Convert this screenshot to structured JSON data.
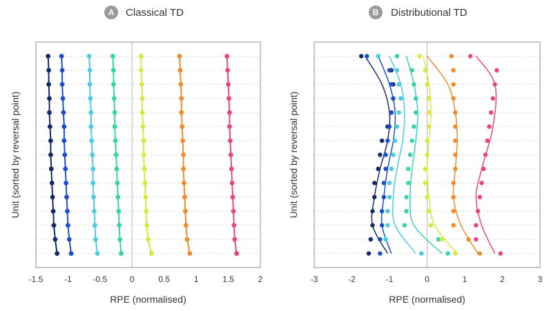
{
  "panels": [
    {
      "badge": "A",
      "title": "Classical TD"
    },
    {
      "badge": "B",
      "title": "Distributional TD"
    }
  ],
  "colors": [
    "#152a63",
    "#1a4fc9",
    "#4ccbe0",
    "#34d4a8",
    "#d8e83a",
    "#f08a2c",
    "#e8467a"
  ],
  "chart_data": [
    {
      "type": "scatter",
      "title": "Classical TD",
      "xlabel": "RPE (normalised)",
      "ylabel": "Unit (sorted by reversal point)",
      "xlim": [
        -1.5,
        2
      ],
      "xticks": [
        -1.5,
        -1,
        -0.5,
        0,
        0.5,
        1,
        1.5,
        2
      ],
      "xtick_labels": [
        "-1.5",
        "-1",
        "-0.5",
        "0",
        "0.5",
        "1",
        "1.5",
        "2"
      ],
      "ylim": [
        0,
        16
      ],
      "units": [
        1,
        2,
        3,
        4,
        5,
        6,
        7,
        8,
        9,
        10,
        11,
        12,
        13,
        14,
        15
      ],
      "grid": "dotted horizontal lines at each unit",
      "series": [
        {
          "values": [
            -1.31,
            -1.3,
            -1.3,
            -1.29,
            -1.29,
            -1.28,
            -1.27,
            -1.27,
            -1.26,
            -1.25,
            -1.24,
            -1.23,
            -1.22,
            -1.2,
            -1.17
          ]
        },
        {
          "values": [
            -1.1,
            -1.09,
            -1.09,
            -1.08,
            -1.07,
            -1.06,
            -1.06,
            -1.05,
            -1.04,
            -1.03,
            -1.02,
            -1.01,
            -1.0,
            -0.98,
            -0.95
          ]
        },
        {
          "values": [
            -0.67,
            -0.66,
            -0.66,
            -0.65,
            -0.64,
            -0.64,
            -0.63,
            -0.62,
            -0.61,
            -0.61,
            -0.6,
            -0.59,
            -0.58,
            -0.57,
            -0.54
          ]
        },
        {
          "values": [
            -0.3,
            -0.29,
            -0.29,
            -0.28,
            -0.27,
            -0.27,
            -0.26,
            -0.25,
            -0.24,
            -0.23,
            -0.22,
            -0.21,
            -0.2,
            -0.19,
            -0.17
          ]
        },
        {
          "values": [
            0.14,
            0.14,
            0.15,
            0.16,
            0.16,
            0.17,
            0.18,
            0.18,
            0.19,
            0.2,
            0.21,
            0.22,
            0.23,
            0.25,
            0.3
          ]
        },
        {
          "values": [
            0.74,
            0.75,
            0.76,
            0.77,
            0.77,
            0.78,
            0.79,
            0.8,
            0.8,
            0.81,
            0.82,
            0.83,
            0.84,
            0.86,
            0.9
          ]
        },
        {
          "values": [
            1.48,
            1.49,
            1.5,
            1.51,
            1.52,
            1.52,
            1.53,
            1.54,
            1.55,
            1.56,
            1.57,
            1.58,
            1.59,
            1.6,
            1.63
          ]
        }
      ]
    },
    {
      "type": "scatter",
      "title": "Distributional TD",
      "xlabel": "RPE (normalised)",
      "ylabel": "Unit (sorted by reversal point)",
      "xlim": [
        -3,
        3
      ],
      "xticks": [
        -3,
        -2,
        -1,
        0,
        1,
        2,
        3
      ],
      "xtick_labels": [
        "-3",
        "-2",
        "-1",
        "0",
        "1",
        "2",
        "3"
      ],
      "ylim": [
        0,
        16
      ],
      "units": [
        1,
        2,
        3,
        4,
        5,
        6,
        7,
        8,
        9,
        10,
        11,
        12,
        13,
        14,
        15
      ],
      "grid": "dotted horizontal lines at each unit",
      "series": [
        {
          "points": [
            [
              -1.75,
              1
            ],
            [
              -0.95,
              2
            ],
            [
              -0.9,
              3
            ],
            [
              -0.9,
              4
            ],
            [
              -0.95,
              5
            ],
            [
              -1.05,
              6
            ],
            [
              -1.2,
              7
            ],
            [
              -1.25,
              8
            ],
            [
              -1.3,
              9
            ],
            [
              -1.4,
              10
            ],
            [
              -1.4,
              11
            ],
            [
              -1.45,
              12
            ],
            [
              -1.45,
              13
            ],
            [
              -1.5,
              14
            ],
            [
              -1.55,
              15
            ]
          ],
          "curve": [
            [
              -1.65,
              1
            ],
            [
              -1.2,
              3
            ],
            [
              -1.0,
              5
            ],
            [
              -1.05,
              7
            ],
            [
              -1.25,
              9
            ],
            [
              -1.4,
              11
            ],
            [
              -1.45,
              13
            ],
            [
              -1.05,
              15
            ]
          ]
        },
        {
          "points": [
            [
              -1.6,
              1
            ],
            [
              -1.0,
              2
            ],
            [
              -0.95,
              3
            ],
            [
              -0.9,
              4
            ],
            [
              -0.95,
              5
            ],
            [
              -1.0,
              6
            ],
            [
              -1.05,
              7
            ],
            [
              -1.1,
              8
            ],
            [
              -1.1,
              9
            ],
            [
              -1.15,
              10
            ],
            [
              -1.15,
              11
            ],
            [
              -1.2,
              12
            ],
            [
              -1.2,
              13
            ],
            [
              -1.25,
              14
            ],
            [
              -1.25,
              15
            ]
          ],
          "curve": [
            [
              -1.3,
              1
            ],
            [
              -1.0,
              3
            ],
            [
              -0.85,
              5
            ],
            [
              -0.9,
              7
            ],
            [
              -1.05,
              9
            ],
            [
              -1.15,
              11
            ],
            [
              -1.2,
              13
            ],
            [
              -0.95,
              15
            ]
          ]
        },
        {
          "points": [
            [
              -1.3,
              1
            ],
            [
              -0.8,
              2
            ],
            [
              -0.75,
              3
            ],
            [
              -0.7,
              4
            ],
            [
              -0.75,
              5
            ],
            [
              -0.8,
              6
            ],
            [
              -0.85,
              7
            ],
            [
              -0.9,
              8
            ],
            [
              -0.95,
              9
            ],
            [
              -1.0,
              10
            ],
            [
              -1.0,
              11
            ],
            [
              -1.05,
              12
            ],
            [
              -1.05,
              13
            ],
            [
              -1.1,
              14
            ],
            [
              -0.15,
              15
            ]
          ],
          "curve": [
            [
              -1.0,
              1
            ],
            [
              -0.7,
              3
            ],
            [
              -0.6,
              5
            ],
            [
              -0.65,
              7
            ],
            [
              -0.8,
              9
            ],
            [
              -0.9,
              11
            ],
            [
              -0.85,
              13
            ],
            [
              -0.3,
              15
            ]
          ]
        },
        {
          "points": [
            [
              -0.8,
              1
            ],
            [
              -0.4,
              2
            ],
            [
              -0.35,
              3
            ],
            [
              -0.3,
              4
            ],
            [
              -0.3,
              5
            ],
            [
              -0.35,
              6
            ],
            [
              -0.4,
              7
            ],
            [
              -0.45,
              8
            ],
            [
              -0.5,
              9
            ],
            [
              -0.5,
              10
            ],
            [
              -0.55,
              11
            ],
            [
              -0.55,
              12
            ],
            [
              -0.6,
              13
            ],
            [
              0.3,
              14
            ],
            [
              0.55,
              15
            ]
          ],
          "curve": [
            [
              -0.55,
              1
            ],
            [
              -0.35,
              3
            ],
            [
              -0.25,
              5
            ],
            [
              -0.3,
              7
            ],
            [
              -0.4,
              9
            ],
            [
              -0.45,
              11
            ],
            [
              -0.35,
              13
            ],
            [
              0.4,
              15
            ]
          ]
        },
        {
          "points": [
            [
              -0.2,
              1
            ],
            [
              -0.05,
              2
            ],
            [
              0.0,
              3
            ],
            [
              0.05,
              4
            ],
            [
              0.05,
              5
            ],
            [
              0.05,
              6
            ],
            [
              0.0,
              7
            ],
            [
              0.0,
              8
            ],
            [
              -0.05,
              9
            ],
            [
              -0.05,
              10
            ],
            [
              0.0,
              11
            ],
            [
              0.05,
              12
            ],
            [
              0.1,
              13
            ],
            [
              0.4,
              14
            ],
            [
              0.75,
              15
            ]
          ],
          "curve": [
            [
              -0.1,
              1
            ],
            [
              0.05,
              3
            ],
            [
              0.1,
              5
            ],
            [
              0.05,
              7
            ],
            [
              0.0,
              9
            ],
            [
              0.05,
              11
            ],
            [
              0.2,
              13
            ],
            [
              0.8,
              15
            ]
          ]
        },
        {
          "points": [
            [
              0.65,
              1
            ],
            [
              0.7,
              2
            ],
            [
              0.7,
              3
            ],
            [
              0.7,
              4
            ],
            [
              0.75,
              5
            ],
            [
              0.75,
              6
            ],
            [
              0.75,
              7
            ],
            [
              0.75,
              8
            ],
            [
              0.75,
              9
            ],
            [
              0.7,
              10
            ],
            [
              0.7,
              11
            ],
            [
              0.7,
              12
            ],
            [
              0.7,
              13
            ],
            [
              1.1,
              14
            ],
            [
              1.4,
              15
            ]
          ],
          "curve": [
            [
              0.0,
              1
            ],
            [
              0.55,
              3
            ],
            [
              0.75,
              5
            ],
            [
              0.8,
              7
            ],
            [
              0.75,
              9
            ],
            [
              0.7,
              11
            ],
            [
              0.9,
              13
            ],
            [
              1.35,
              15
            ]
          ]
        },
        {
          "points": [
            [
              1.15,
              1
            ],
            [
              1.85,
              2
            ],
            [
              1.8,
              3
            ],
            [
              1.75,
              4
            ],
            [
              1.7,
              5
            ],
            [
              1.65,
              6
            ],
            [
              1.6,
              7
            ],
            [
              1.55,
              8
            ],
            [
              1.5,
              9
            ],
            [
              1.45,
              10
            ],
            [
              1.4,
              11
            ],
            [
              1.35,
              12
            ],
            [
              1.3,
              13
            ],
            [
              1.3,
              14
            ],
            [
              1.95,
              15
            ]
          ],
          "curve": [
            [
              1.3,
              1
            ],
            [
              1.8,
              3
            ],
            [
              1.75,
              6
            ],
            [
              1.45,
              9
            ],
            [
              1.3,
              11
            ],
            [
              1.45,
              13
            ],
            [
              1.8,
              15
            ]
          ]
        }
      ]
    }
  ]
}
